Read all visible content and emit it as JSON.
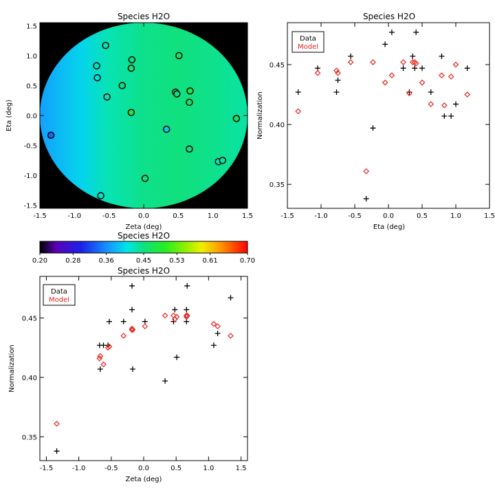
{
  "colors": {
    "data_marker": "#000000",
    "model_marker": "#e8231b",
    "background_outside_field": "#000000"
  },
  "chart_data": [
    {
      "type": "heatmap",
      "title": "Species H2O",
      "xlabel": "Zeta (deg)",
      "ylabel": "Eta (deg)",
      "xlim": [
        -1.5,
        1.5
      ],
      "ylim": [
        -1.55,
        1.55
      ],
      "xticks": [
        -1.5,
        -1.0,
        -0.5,
        0.0,
        0.5,
        1.0,
        1.5
      ],
      "yticks": [
        -1.5,
        -1.0,
        -0.5,
        0.0,
        0.5,
        1.0,
        1.5
      ],
      "xtick_labels": [
        "-1.5",
        "-1.0",
        "-0.5",
        "0.0",
        "0.5",
        "1.0",
        "1.5"
      ],
      "ytick_labels": [
        "-1.5",
        "-1.0",
        "-0.5",
        "0.0",
        "0.5",
        "1.0",
        "1.5"
      ],
      "field_radius": 1.5,
      "color_range": [
        0.2,
        0.7
      ],
      "gradient_samples": [
        {
          "zeta": -1.5,
          "value": 0.37
        },
        {
          "zeta": -0.9,
          "value": 0.4
        },
        {
          "zeta": -0.5,
          "value": 0.43
        },
        {
          "zeta": 0.0,
          "value": 0.445
        },
        {
          "zeta": 0.5,
          "value": 0.45
        },
        {
          "zeta": 1.0,
          "value": 0.445
        },
        {
          "zeta": 1.5,
          "value": 0.435
        }
      ],
      "points": [
        {
          "zeta": -0.55,
          "eta": 1.17,
          "value": 0.427
        },
        {
          "zeta": -0.68,
          "eta": 0.83,
          "value": 0.427
        },
        {
          "zeta": -0.67,
          "eta": 0.63,
          "value": 0.417
        },
        {
          "zeta": -0.53,
          "eta": 0.31,
          "value": 0.427
        },
        {
          "zeta": -0.17,
          "eta": 0.93,
          "value": 0.447
        },
        {
          "zeta": -0.18,
          "eta": 0.79,
          "value": 0.457
        },
        {
          "zeta": -0.31,
          "eta": 0.5,
          "value": 0.447
        },
        {
          "zeta": -0.18,
          "eta": 0.05,
          "value": 0.477
        },
        {
          "zeta": 0.51,
          "eta": 1.0,
          "value": 0.457
        },
        {
          "zeta": 0.46,
          "eta": 0.39,
          "value": 0.447
        },
        {
          "zeta": 0.48,
          "eta": 0.36,
          "value": 0.447
        },
        {
          "zeta": 0.67,
          "eta": 0.41,
          "value": 0.477
        },
        {
          "zeta": 0.66,
          "eta": 0.22,
          "value": 0.457
        },
        {
          "zeta": 0.33,
          "eta": -0.23,
          "value": 0.397
        },
        {
          "zeta": 1.34,
          "eta": -0.05,
          "value": 0.467
        },
        {
          "zeta": 0.66,
          "eta": -0.56,
          "value": 0.447
        },
        {
          "zeta": 1.08,
          "eta": -0.77,
          "value": 0.427
        },
        {
          "zeta": 1.14,
          "eta": -0.75,
          "value": 0.437
        },
        {
          "zeta": 0.02,
          "eta": -1.05,
          "value": 0.447
        },
        {
          "zeta": -0.62,
          "eta": -1.34,
          "value": 0.427
        },
        {
          "zeta": -1.34,
          "eta": -0.33,
          "value": 0.338
        }
      ]
    },
    {
      "type": "scatter",
      "title": "Species H2O",
      "xlabel": "Eta (deg)",
      "ylabel": "Normalization",
      "xlim": [
        -1.5,
        1.5
      ],
      "ylim": [
        0.33,
        0.485
      ],
      "xticks": [
        -1.5,
        -1.0,
        -0.5,
        0.0,
        0.5,
        1.0,
        1.5
      ],
      "yticks": [
        0.35,
        0.4,
        0.45
      ],
      "xtick_labels": [
        "-1.5",
        "-1.0",
        "-0.5",
        "0.0",
        "0.5",
        "1.0",
        "1.5"
      ],
      "ytick_labels": [
        "0.35",
        "0.40",
        "0.45"
      ],
      "legend": {
        "position": "top-left",
        "entries": [
          "Data",
          "Model"
        ]
      },
      "series": [
        {
          "name": "Data",
          "marker": "plus",
          "points": [
            [
              -1.34,
              0.427
            ],
            [
              -1.05,
              0.447
            ],
            [
              -0.77,
              0.427
            ],
            [
              -0.75,
              0.437
            ],
            [
              -0.56,
              0.457
            ],
            [
              -0.33,
              0.338
            ],
            [
              -0.23,
              0.397
            ],
            [
              -0.05,
              0.467
            ],
            [
              0.05,
              0.477
            ],
            [
              0.22,
              0.447
            ],
            [
              0.31,
              0.427
            ],
            [
              0.36,
              0.457
            ],
            [
              0.39,
              0.447
            ],
            [
              0.41,
              0.477
            ],
            [
              0.5,
              0.447
            ],
            [
              0.63,
              0.427
            ],
            [
              0.79,
              0.457
            ],
            [
              0.83,
              0.407
            ],
            [
              0.93,
              0.407
            ],
            [
              1.0,
              0.417
            ],
            [
              1.17,
              0.447
            ]
          ]
        },
        {
          "name": "Model",
          "marker": "diamond",
          "points": [
            [
              -1.34,
              0.411
            ],
            [
              -1.05,
              0.443
            ],
            [
              -0.77,
              0.445
            ],
            [
              -0.75,
              0.443
            ],
            [
              -0.56,
              0.452
            ],
            [
              -0.33,
              0.361
            ],
            [
              -0.23,
              0.452
            ],
            [
              -0.05,
              0.435
            ],
            [
              0.05,
              0.441
            ],
            [
              0.22,
              0.452
            ],
            [
              0.31,
              0.426
            ],
            [
              0.36,
              0.452
            ],
            [
              0.39,
              0.452
            ],
            [
              0.41,
              0.451
            ],
            [
              0.5,
              0.435
            ],
            [
              0.63,
              0.417
            ],
            [
              0.79,
              0.441
            ],
            [
              0.83,
              0.416
            ],
            [
              0.93,
              0.44
            ],
            [
              1.0,
              0.45
            ],
            [
              1.17,
              0.425
            ]
          ]
        }
      ]
    },
    {
      "type": "colorbar",
      "title": "Species H2O",
      "range": [
        0.2,
        0.7
      ],
      "tick_values": [
        0.2,
        0.28,
        0.36,
        0.45,
        0.53,
        0.61,
        0.7
      ],
      "tick_labels": [
        "0.20",
        "0.28",
        "0.36",
        "0.45",
        "0.53",
        "0.61",
        "0.70"
      ]
    },
    {
      "type": "scatter",
      "title": "Species H2O",
      "xlabel": "Zeta (deg)",
      "ylabel": "Normalization",
      "xlim": [
        -1.6,
        1.6
      ],
      "ylim": [
        0.33,
        0.485
      ],
      "xticks": [
        -1.5,
        -1.0,
        -0.5,
        0.0,
        0.5,
        1.0,
        1.5
      ],
      "yticks": [
        0.35,
        0.4,
        0.45
      ],
      "xtick_labels": [
        "-1.5",
        "-1.0",
        "-0.5",
        "0.0",
        "0.5",
        "1.0",
        "1.5"
      ],
      "ytick_labels": [
        "0.35",
        "0.40",
        "0.45"
      ],
      "legend": {
        "position": "top-left",
        "entries": [
          "Data",
          "Model"
        ]
      },
      "series": [
        {
          "name": "Data",
          "marker": "plus",
          "points": [
            [
              -1.34,
              0.338
            ],
            [
              -0.68,
              0.427
            ],
            [
              -0.67,
              0.407
            ],
            [
              -0.62,
              0.427
            ],
            [
              -0.55,
              0.427
            ],
            [
              -0.53,
              0.447
            ],
            [
              -0.31,
              0.447
            ],
            [
              -0.18,
              0.477
            ],
            [
              -0.18,
              0.457
            ],
            [
              -0.17,
              0.407
            ],
            [
              0.02,
              0.447
            ],
            [
              0.33,
              0.397
            ],
            [
              0.46,
              0.447
            ],
            [
              0.48,
              0.457
            ],
            [
              0.51,
              0.417
            ],
            [
              0.66,
              0.447
            ],
            [
              0.66,
              0.457
            ],
            [
              0.67,
              0.477
            ],
            [
              1.08,
              0.427
            ],
            [
              1.14,
              0.437
            ],
            [
              1.34,
              0.467
            ]
          ]
        },
        {
          "name": "Model",
          "marker": "diamond",
          "points": [
            [
              -1.34,
              0.361
            ],
            [
              -0.68,
              0.416
            ],
            [
              -0.67,
              0.418
            ],
            [
              -0.62,
              0.411
            ],
            [
              -0.55,
              0.425
            ],
            [
              -0.53,
              0.426
            ],
            [
              -0.31,
              0.435
            ],
            [
              -0.18,
              0.44
            ],
            [
              -0.18,
              0.441
            ],
            [
              -0.17,
              0.44
            ],
            [
              0.02,
              0.443
            ],
            [
              0.33,
              0.452
            ],
            [
              0.46,
              0.452
            ],
            [
              0.48,
              0.449
            ],
            [
              0.51,
              0.451
            ],
            [
              0.66,
              0.452
            ],
            [
              0.66,
              0.451
            ],
            [
              0.67,
              0.452
            ],
            [
              1.08,
              0.445
            ],
            [
              1.14,
              0.443
            ],
            [
              1.34,
              0.435
            ]
          ]
        }
      ]
    }
  ]
}
